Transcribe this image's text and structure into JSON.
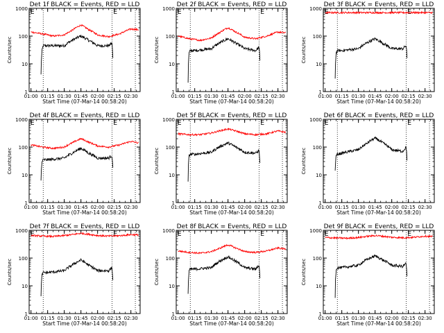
{
  "window": {
    "title": ""
  },
  "colors": {
    "events": "#000000",
    "lld": "#ff0000",
    "axes": "#000000",
    "background": "#ffffff"
  },
  "chart_data": [
    {
      "type": "line",
      "title": "Det 1f BLACK = Events, RED = LLD",
      "xlabel": "Start Time (07-Mar-14 00:58:20)",
      "ylabel": "Counts/sec",
      "xtick_labels": [
        "01:00",
        "01:15",
        "01:30",
        "01:45",
        "02:00",
        "02:15",
        "02:30"
      ],
      "ytick_labels": [
        "1",
        "10",
        "100",
        "1000"
      ],
      "yscale": "log",
      "ylim": [
        1,
        1000
      ],
      "markers": [
        "E",
        "E"
      ],
      "series": [
        {
          "key": "events",
          "color": "#000000",
          "x": [
            "01:09",
            "01:10",
            "01:11",
            "01:15",
            "01:30",
            "01:37",
            "01:45",
            "01:52",
            "02:00",
            "02:10",
            "02:13",
            "02:14"
          ],
          "values": [
            4,
            30,
            45,
            45,
            45,
            70,
            100,
            70,
            45,
            45,
            55,
            3
          ]
        },
        {
          "key": "lld",
          "color": "#ff0000",
          "x": [
            "01:00",
            "01:10",
            "01:20",
            "01:30",
            "01:37",
            "01:45",
            "01:52",
            "02:00",
            "02:10",
            "02:20",
            "02:30",
            "02:37"
          ],
          "values": [
            140,
            120,
            100,
            110,
            160,
            250,
            170,
            110,
            95,
            120,
            180,
            170
          ]
        }
      ]
    },
    {
      "type": "line",
      "title": "Det 2f BLACK = Events, RED = LLD",
      "xlabel": "Start Time (07-Mar-14 00:58:20)",
      "ylabel": "Counts/sec",
      "xtick_labels": [
        "01:00",
        "01:15",
        "01:30",
        "01:45",
        "02:00",
        "02:15",
        "02:30"
      ],
      "ytick_labels": [
        "1",
        "10",
        "100",
        "1000"
      ],
      "yscale": "log",
      "ylim": [
        1,
        1000
      ],
      "markers": [
        "E",
        "E"
      ],
      "series": [
        {
          "key": "events",
          "color": "#000000",
          "x": [
            "01:09",
            "01:10",
            "01:11",
            "01:15",
            "01:30",
            "01:37",
            "01:45",
            "01:52",
            "02:00",
            "02:10",
            "02:13",
            "02:14"
          ],
          "values": [
            2,
            25,
            30,
            30,
            35,
            55,
            80,
            55,
            35,
            30,
            40,
            3
          ]
        },
        {
          "key": "lld",
          "color": "#ff0000",
          "x": [
            "01:00",
            "01:10",
            "01:20",
            "01:30",
            "01:37",
            "01:45",
            "01:52",
            "02:00",
            "02:10",
            "02:20",
            "02:30",
            "02:37"
          ],
          "values": [
            100,
            80,
            70,
            85,
            130,
            200,
            140,
            90,
            80,
            100,
            140,
            130
          ]
        }
      ]
    },
    {
      "type": "line",
      "title": "Det 3f BLACK = Events, RED = LLD",
      "xlabel": "Start Time (07-Mar-14 00:58:20)",
      "ylabel": "Counts/sec",
      "xtick_labels": [
        "01:00",
        "01:15",
        "01:30",
        "01:45",
        "02:00",
        "02:15",
        "02:30"
      ],
      "ytick_labels": [
        "1",
        "10",
        "100",
        "1000"
      ],
      "yscale": "log",
      "ylim": [
        1,
        1000
      ],
      "markers": [
        "E",
        "E"
      ],
      "series": [
        {
          "key": "events",
          "color": "#000000",
          "x": [
            "01:09",
            "01:10",
            "01:11",
            "01:15",
            "01:30",
            "01:37",
            "01:45",
            "01:52",
            "02:00",
            "02:10",
            "02:13",
            "02:14"
          ],
          "values": [
            3,
            25,
            30,
            30,
            35,
            55,
            80,
            55,
            35,
            35,
            45,
            5
          ]
        },
        {
          "key": "lld",
          "color": "#ff0000",
          "x": [
            "01:00",
            "01:20",
            "01:40",
            "02:00",
            "02:20",
            "02:37"
          ],
          "values": [
            700,
            700,
            700,
            700,
            700,
            700
          ]
        }
      ]
    },
    {
      "type": "line",
      "title": "Det 4f BLACK = Events, RED = LLD",
      "xlabel": "Start Time (07-Mar-14 00:58:20)",
      "ylabel": "Counts/sec",
      "xtick_labels": [
        "01:00",
        "01:15",
        "01:30",
        "01:45",
        "02:00",
        "02:15",
        "02:30"
      ],
      "ytick_labels": [
        "1",
        "10",
        "100",
        "1000"
      ],
      "yscale": "log",
      "ylim": [
        1,
        1000
      ],
      "markers": [
        "E",
        "E"
      ],
      "series": [
        {
          "key": "events",
          "color": "#000000",
          "x": [
            "01:09",
            "01:10",
            "01:11",
            "01:15",
            "01:30",
            "01:37",
            "01:45",
            "01:52",
            "02:00",
            "02:10",
            "02:13",
            "02:14"
          ],
          "values": [
            6,
            30,
            35,
            35,
            40,
            60,
            90,
            60,
            40,
            40,
            50,
            5
          ]
        },
        {
          "key": "lld",
          "color": "#ff0000",
          "x": [
            "01:00",
            "01:10",
            "01:20",
            "01:30",
            "01:37",
            "01:45",
            "01:52",
            "02:00",
            "02:10",
            "02:20",
            "02:30",
            "02:37"
          ],
          "values": [
            120,
            100,
            90,
            100,
            140,
            200,
            150,
            110,
            100,
            120,
            160,
            140
          ]
        }
      ]
    },
    {
      "type": "line",
      "title": "Det 5f BLACK = Events, RED = LLD",
      "xlabel": "Start Time (07-Mar-14 00:58:20)",
      "ylabel": "Counts/sec",
      "xtick_labels": [
        "01:00",
        "01:15",
        "01:30",
        "01:45",
        "02:00",
        "02:15",
        "02:30"
      ],
      "ytick_labels": [
        "1",
        "10",
        "100",
        "1000"
      ],
      "yscale": "log",
      "ylim": [
        1,
        1000
      ],
      "markers": [
        "E",
        "E"
      ],
      "series": [
        {
          "key": "events",
          "color": "#000000",
          "x": [
            "01:09",
            "01:10",
            "01:11",
            "01:15",
            "01:30",
            "01:37",
            "01:45",
            "01:52",
            "02:00",
            "02:10",
            "02:13",
            "02:14"
          ],
          "values": [
            6,
            50,
            55,
            55,
            65,
            100,
            140,
            100,
            65,
            60,
            75,
            8
          ]
        },
        {
          "key": "lld",
          "color": "#ff0000",
          "x": [
            "01:00",
            "01:10",
            "01:20",
            "01:30",
            "01:37",
            "01:45",
            "01:52",
            "02:00",
            "02:10",
            "02:20",
            "02:30",
            "02:37"
          ],
          "values": [
            300,
            280,
            280,
            320,
            380,
            450,
            380,
            300,
            280,
            300,
            380,
            340
          ]
        }
      ]
    },
    {
      "type": "line",
      "title": "Det 6f BLACK = Events, RED = LLD",
      "xlabel": "Start Time (07-Mar-14 00:58:20)",
      "ylabel": "Counts/sec",
      "xtick_labels": [
        "01:00",
        "01:15",
        "01:30",
        "01:45",
        "02:00",
        "02:15",
        "02:30"
      ],
      "ytick_labels": [
        "1",
        "10",
        "100",
        "1000"
      ],
      "yscale": "log",
      "ylim": [
        1,
        1000
      ],
      "markers": [
        "E",
        "E"
      ],
      "series": [
        {
          "key": "events",
          "color": "#000000",
          "x": [
            "01:09",
            "01:10",
            "01:11",
            "01:15",
            "01:30",
            "01:37",
            "01:45",
            "01:52",
            "02:00",
            "02:10",
            "02:13",
            "02:14"
          ],
          "values": [
            15,
            50,
            55,
            60,
            80,
            130,
            210,
            140,
            80,
            70,
            100,
            15
          ]
        }
      ]
    },
    {
      "type": "line",
      "title": "Det 7f BLACK = Events, RED = LLD",
      "xlabel": "Start Time (07-Mar-14 00:58:20)",
      "ylabel": "Counts/sec",
      "xtick_labels": [
        "01:00",
        "01:15",
        "01:30",
        "01:45",
        "02:00",
        "02:15",
        "02:30"
      ],
      "ytick_labels": [
        "1",
        "10",
        "100",
        "1000"
      ],
      "yscale": "log",
      "ylim": [
        1,
        1000
      ],
      "markers": [
        "E",
        "E"
      ],
      "series": [
        {
          "key": "events",
          "color": "#000000",
          "x": [
            "01:09",
            "01:10",
            "01:11",
            "01:15",
            "01:30",
            "01:37",
            "01:45",
            "01:52",
            "02:00",
            "02:10",
            "02:13",
            "02:14"
          ],
          "values": [
            4,
            25,
            30,
            30,
            35,
            55,
            85,
            55,
            35,
            35,
            45,
            5
          ]
        },
        {
          "key": "lld",
          "color": "#ff0000",
          "x": [
            "01:00",
            "01:10",
            "01:20",
            "01:30",
            "01:37",
            "01:45",
            "01:52",
            "02:00",
            "02:10",
            "02:20",
            "02:30",
            "02:37"
          ],
          "values": [
            650,
            620,
            600,
            650,
            700,
            780,
            720,
            650,
            620,
            640,
            700,
            680
          ]
        }
      ]
    },
    {
      "type": "line",
      "title": "Det 8f BLACK = Events, RED = LLD",
      "xlabel": "Start Time (07-Mar-14 00:58:20)",
      "ylabel": "Counts/sec",
      "xtick_labels": [
        "01:00",
        "01:15",
        "01:30",
        "01:45",
        "02:00",
        "02:15",
        "02:30"
      ],
      "ytick_labels": [
        "1",
        "10",
        "100",
        "1000"
      ],
      "yscale": "log",
      "ylim": [
        1,
        1000
      ],
      "markers": [
        "E",
        "E"
      ],
      "series": [
        {
          "key": "events",
          "color": "#000000",
          "x": [
            "01:09",
            "01:10",
            "01:11",
            "01:15",
            "01:30",
            "01:37",
            "01:45",
            "01:52",
            "02:00",
            "02:10",
            "02:13",
            "02:14"
          ],
          "values": [
            5,
            35,
            40,
            40,
            45,
            75,
            110,
            75,
            45,
            40,
            55,
            5
          ]
        },
        {
          "key": "lld",
          "color": "#ff0000",
          "x": [
            "01:00",
            "01:10",
            "01:20",
            "01:30",
            "01:37",
            "01:45",
            "01:52",
            "02:00",
            "02:10",
            "02:20",
            "02:30",
            "02:37"
          ],
          "values": [
            180,
            160,
            150,
            170,
            220,
            300,
            230,
            170,
            160,
            180,
            230,
            210
          ]
        }
      ]
    },
    {
      "type": "line",
      "title": "Det 9f BLACK = Events, RED = LLD",
      "xlabel": "Start Time (07-Mar-14 00:58:20)",
      "ylabel": "Counts/sec",
      "xtick_labels": [
        "01:00",
        "01:15",
        "01:30",
        "01:45",
        "02:00",
        "02:15",
        "02:30"
      ],
      "ytick_labels": [
        "1",
        "10",
        "100",
        "1000"
      ],
      "yscale": "log",
      "ylim": [
        1,
        1000
      ],
      "markers": [
        "E",
        "E"
      ],
      "series": [
        {
          "key": "events",
          "color": "#000000",
          "x": [
            "01:09",
            "01:10",
            "01:11",
            "01:15",
            "01:30",
            "01:37",
            "01:45",
            "01:52",
            "02:00",
            "02:10",
            "02:13",
            "02:14"
          ],
          "values": [
            4,
            40,
            45,
            45,
            55,
            85,
            120,
            85,
            55,
            50,
            65,
            6
          ]
        },
        {
          "key": "lld",
          "color": "#ff0000",
          "x": [
            "01:00",
            "01:10",
            "01:20",
            "01:30",
            "01:37",
            "01:45",
            "01:52",
            "02:00",
            "02:10",
            "02:20",
            "02:30",
            "02:37"
          ],
          "values": [
            550,
            530,
            520,
            550,
            600,
            650,
            610,
            560,
            540,
            560,
            620,
            590
          ]
        }
      ]
    }
  ]
}
